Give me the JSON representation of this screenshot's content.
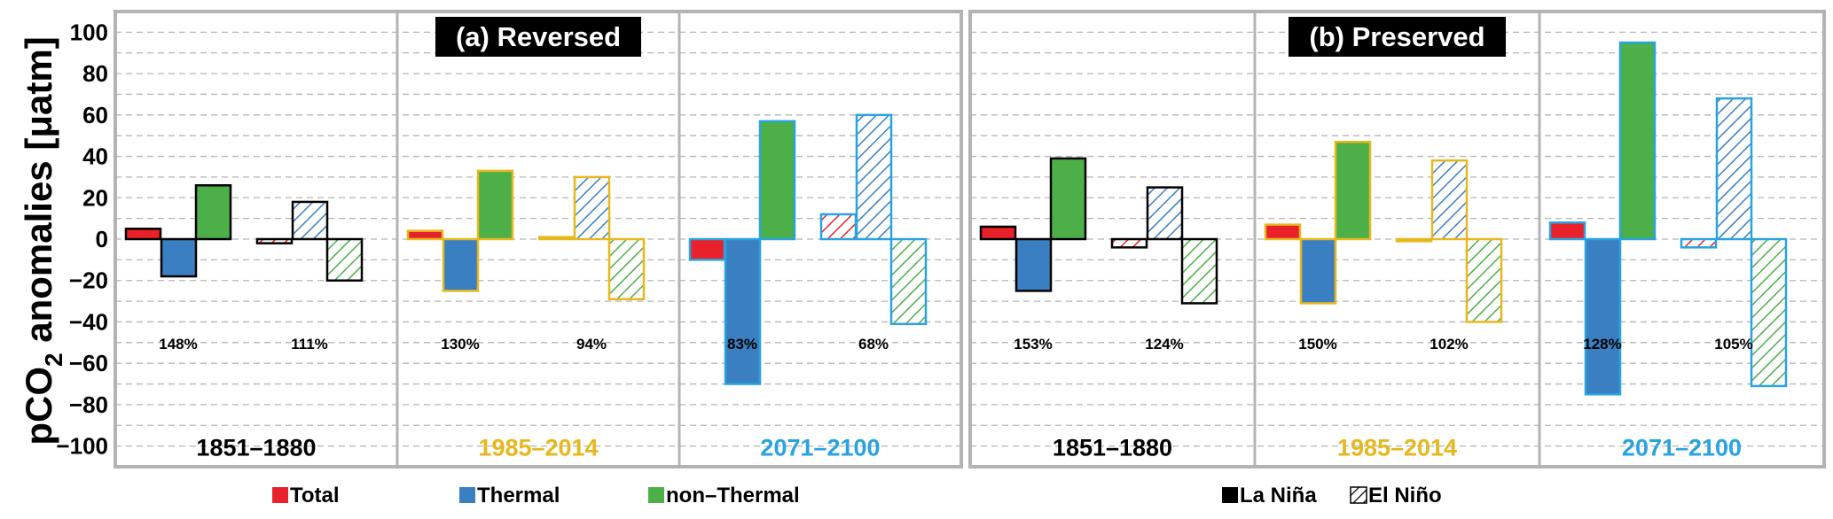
{
  "chart_data": {
    "type": "bar",
    "ylabel_main": "pCO",
    "ylabel_sub": "2",
    "ylabel_rest": " anomalies [μatm]",
    "ylim": [
      -110,
      110
    ],
    "yticks": [
      -100,
      -80,
      -60,
      -40,
      -20,
      0,
      20,
      40,
      60,
      80,
      100
    ],
    "grid": "dashed-horizontal",
    "colors": {
      "Total": "#e8212b",
      "Thermal": "#3a7fc2",
      "non-Thermal": "#4caf48"
    },
    "period_colors": {
      "1851–1880": "#000000",
      "1985–2014": "#e6b81e",
      "2071–2100": "#29a3e0"
    },
    "panels": [
      {
        "title": "(a) Reversed",
        "periods": [
          {
            "label": "1851–1880",
            "groups": [
              {
                "phase": "La Niña",
                "percent": "148%",
                "Total": 5,
                "Thermal": -18,
                "non-Thermal": 26
              },
              {
                "phase": "El Niño",
                "percent": "111%",
                "Total": -2,
                "Thermal": 18,
                "non-Thermal": -20
              }
            ]
          },
          {
            "label": "1985–2014",
            "groups": [
              {
                "phase": "La Niña",
                "percent": "130%",
                "Total": 4,
                "Thermal": -25,
                "non-Thermal": 33
              },
              {
                "phase": "El Niño",
                "percent": "94%",
                "Total": 1,
                "Thermal": 30,
                "non-Thermal": -29
              }
            ]
          },
          {
            "label": "2071–2100",
            "groups": [
              {
                "phase": "La Niña",
                "percent": "83%",
                "Total": -10,
                "Thermal": -70,
                "non-Thermal": 57
              },
              {
                "phase": "El Niño",
                "percent": "68%",
                "Total": 12,
                "Thermal": 60,
                "non-Thermal": -41
              }
            ]
          }
        ]
      },
      {
        "title": "(b) Preserved",
        "periods": [
          {
            "label": "1851–1880",
            "groups": [
              {
                "phase": "La Niña",
                "percent": "153%",
                "Total": 6,
                "Thermal": -25,
                "non-Thermal": 39
              },
              {
                "phase": "El Niño",
                "percent": "124%",
                "Total": -4,
                "Thermal": 25,
                "non-Thermal": -31
              }
            ]
          },
          {
            "label": "1985–2014",
            "groups": [
              {
                "phase": "La Niña",
                "percent": "150%",
                "Total": 7,
                "Thermal": -31,
                "non-Thermal": 47
              },
              {
                "phase": "El Niño",
                "percent": "102%",
                "Total": -1,
                "Thermal": 38,
                "non-Thermal": -40
              }
            ]
          },
          {
            "label": "2071–2100",
            "groups": [
              {
                "phase": "La Niña",
                "percent": "128%",
                "Total": 8,
                "Thermal": -75,
                "non-Thermal": 95
              },
              {
                "phase": "El Niño",
                "percent": "105%",
                "Total": -4,
                "Thermal": 68,
                "non-Thermal": -71
              }
            ]
          }
        ]
      }
    ],
    "legend": {
      "placement": "bottom",
      "items": [
        {
          "key": "Total",
          "label": "Total"
        },
        {
          "key": "Thermal",
          "label": "Thermal"
        },
        {
          "key": "non-Thermal",
          "label": "non–Thermal"
        }
      ],
      "phase_items": [
        {
          "key": "La Niña",
          "label": "La Niña"
        },
        {
          "key": "El Niño",
          "label": "El Niño"
        }
      ]
    }
  }
}
